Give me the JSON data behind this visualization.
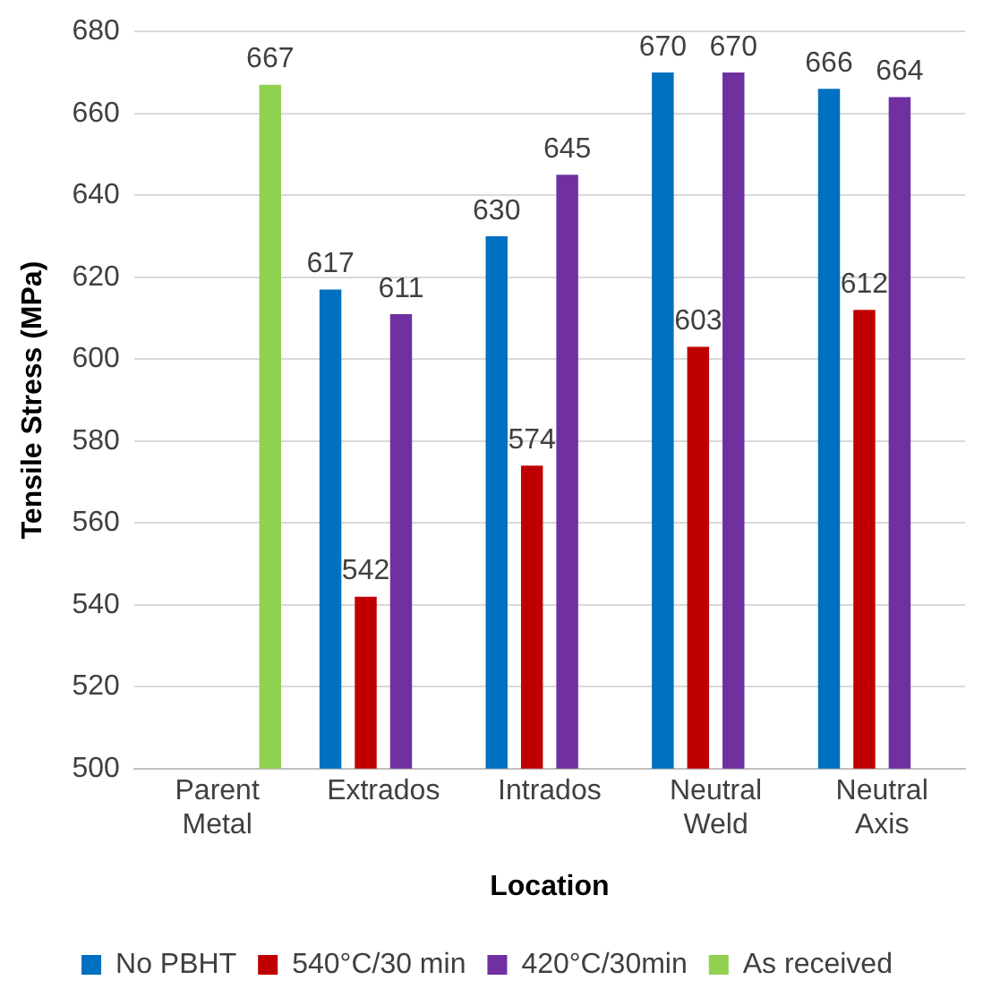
{
  "chart_data": {
    "type": "bar",
    "xlabel": "Location",
    "ylabel": "Tensile Stress (MPa)",
    "categories": [
      "Parent Metal",
      "Extrados",
      "Intrados",
      "Neutral Weld",
      "Neutral Axis"
    ],
    "series": [
      {
        "name": "No PBHT",
        "color": "#0070c0",
        "values": [
          null,
          617,
          630,
          670,
          666
        ]
      },
      {
        "name": "540°C/30 min",
        "color": "#c00000",
        "values": [
          null,
          542,
          574,
          603,
          612
        ]
      },
      {
        "name": "420°C/30min",
        "color": "#7030a0",
        "values": [
          null,
          611,
          645,
          670,
          664
        ]
      },
      {
        "name": "As received",
        "color": "#92d050",
        "values": [
          667,
          null,
          null,
          null,
          null
        ]
      }
    ],
    "ylim": [
      500,
      680
    ],
    "yticks": [
      500,
      520,
      540,
      560,
      580,
      600,
      620,
      640,
      660,
      680
    ],
    "grid": "y",
    "legend": "bottom",
    "data_labels": true
  }
}
